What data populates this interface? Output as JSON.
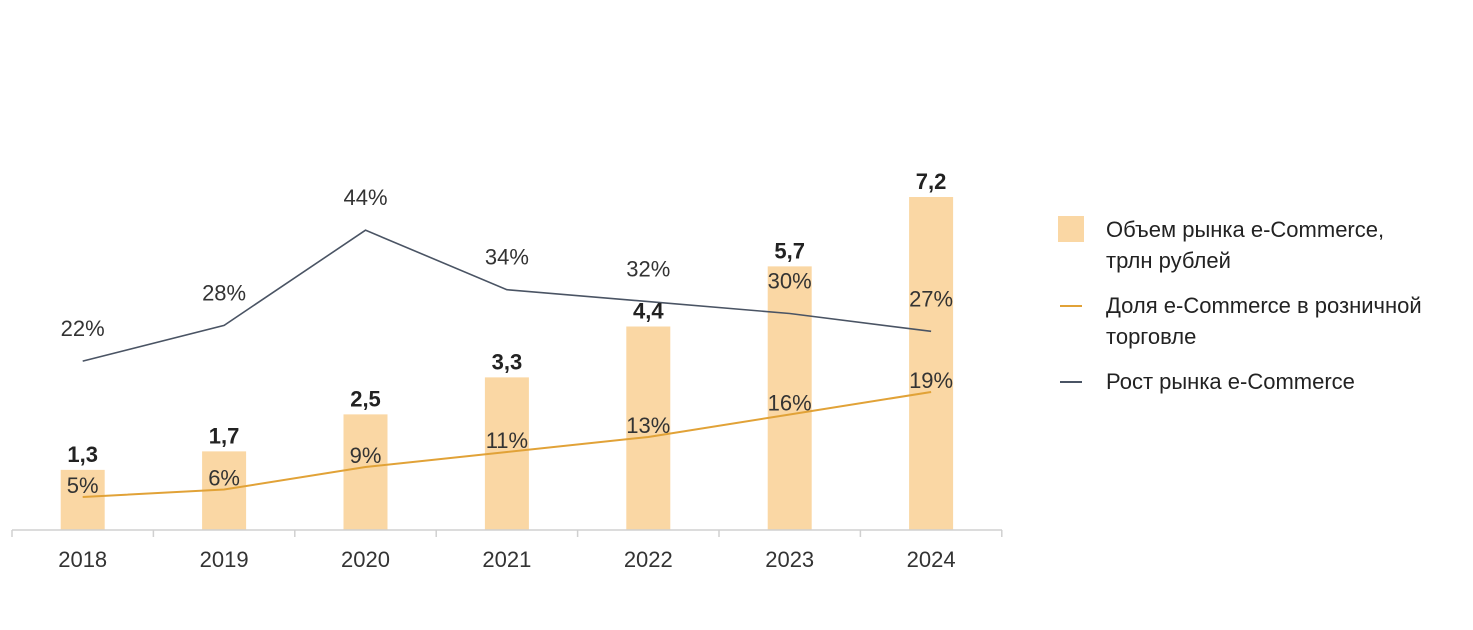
{
  "chart_data": {
    "type": "bar",
    "categories": [
      "2018",
      "2019",
      "2020",
      "2021",
      "2022",
      "2023",
      "2024"
    ],
    "series": [
      {
        "name": "Объем рынка e-Commerce, трлн рублей",
        "kind": "bar",
        "values": [
          1.3,
          1.7,
          2.5,
          3.3,
          4.4,
          5.7,
          7.2
        ],
        "labels": [
          "1,3",
          "1,7",
          "2,5",
          "3,3",
          "4,4",
          "5,7",
          "7,2"
        ],
        "color": "#FAD7A4"
      },
      {
        "name": "Доля e-Commerce в розничной торговле",
        "kind": "line",
        "values": [
          5,
          6,
          9,
          11,
          13,
          16,
          19
        ],
        "labels": [
          "5%",
          "6%",
          "9%",
          "11%",
          "13%",
          "16%",
          "19%"
        ],
        "color": "#E1A237"
      },
      {
        "name": "Рост рынка e-Commerce",
        "kind": "line",
        "values": [
          22,
          28,
          44,
          34,
          32,
          30,
          27
        ],
        "labels": [
          "22%",
          "28%",
          "44%",
          "34%",
          "32%",
          "30%",
          "27%"
        ],
        "color": "#4A5464"
      }
    ],
    "title": "",
    "xlabel": "",
    "ylabel": "",
    "legend_position": "right",
    "grid": false
  },
  "legend": {
    "items": [
      {
        "label_line1": "Объем рынка e-Commerce,",
        "label_line2": "трлн рублей",
        "color": "#FAD7A4",
        "marker": "square"
      },
      {
        "label_line1": "Доля e-Commerce в розничной",
        "label_line2": "торговле",
        "color": "#E1A237",
        "marker": "line"
      },
      {
        "label_line1": "Рост рынка e-Commerce",
        "label_line2": "",
        "color": "#4A5464",
        "marker": "line"
      }
    ]
  },
  "colors": {
    "axis": "#D0D0D0",
    "text": "#333333"
  }
}
